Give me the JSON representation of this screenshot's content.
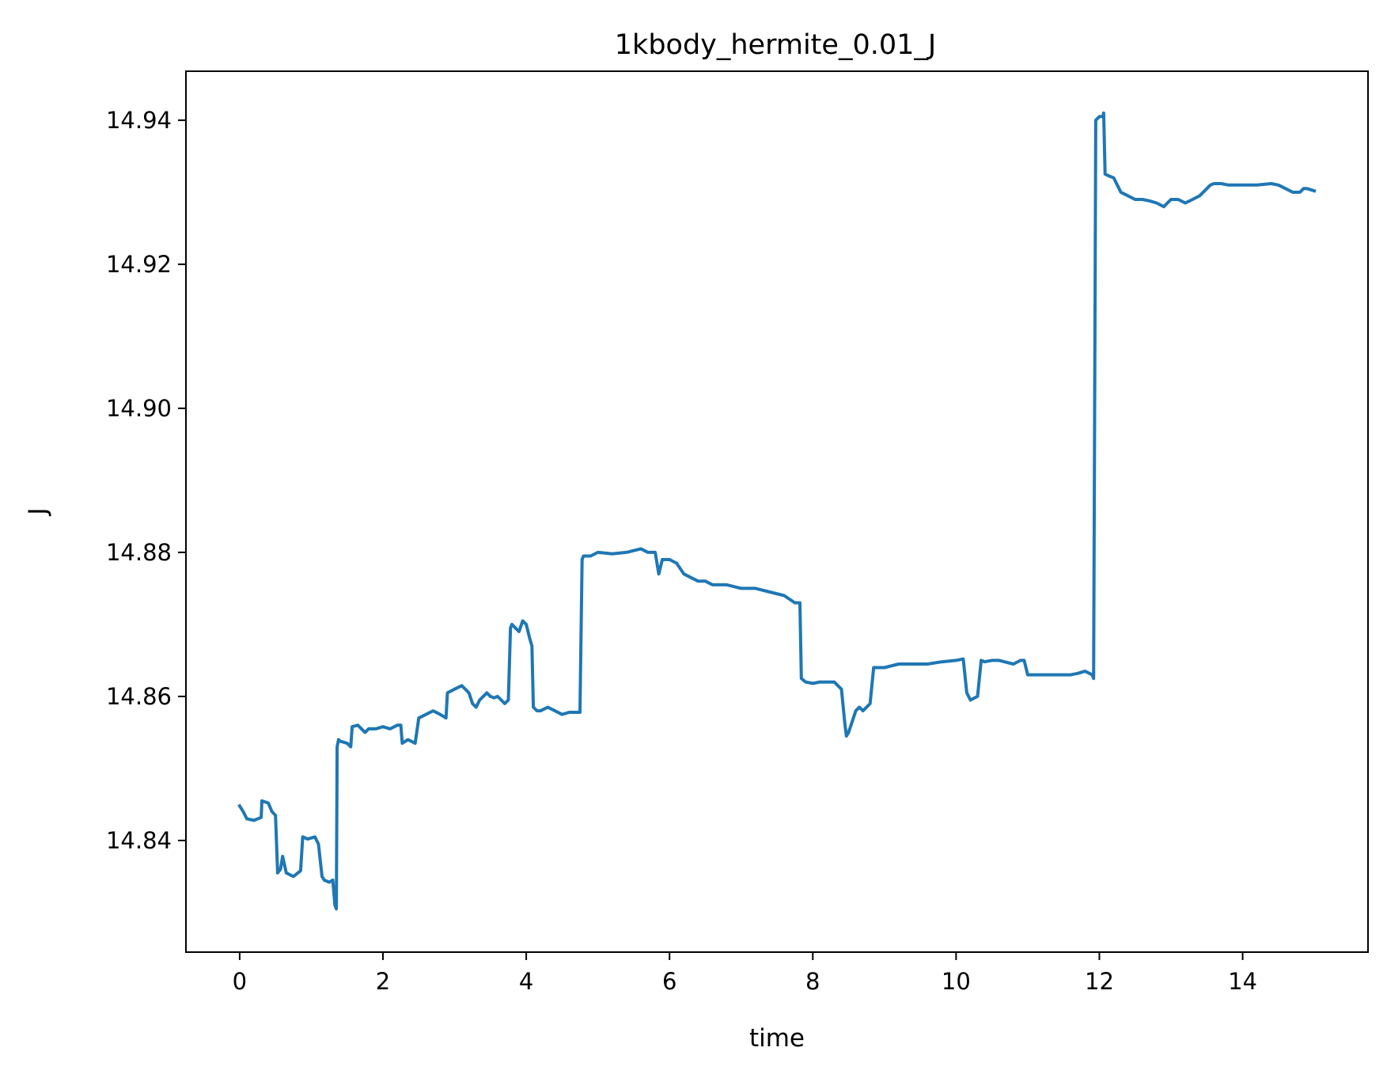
{
  "chart_data": {
    "type": "line",
    "title": "1kbody_hermite_0.01_J",
    "xlabel": "time",
    "ylabel": "J",
    "xlim": [
      -0.75,
      15.75
    ],
    "ylim": [
      14.8245,
      14.9468
    ],
    "xticks": [
      {
        "value": 0,
        "label": "0"
      },
      {
        "value": 2,
        "label": "2"
      },
      {
        "value": 4,
        "label": "4"
      },
      {
        "value": 6,
        "label": "6"
      },
      {
        "value": 8,
        "label": "8"
      },
      {
        "value": 10,
        "label": "10"
      },
      {
        "value": 12,
        "label": "12"
      },
      {
        "value": 14,
        "label": "14"
      }
    ],
    "yticks": [
      {
        "value": 14.84,
        "label": "14.84"
      },
      {
        "value": 14.86,
        "label": "14.86"
      },
      {
        "value": 14.88,
        "label": "14.88"
      },
      {
        "value": 14.9,
        "label": "14.90"
      },
      {
        "value": 14.92,
        "label": "14.92"
      },
      {
        "value": 14.94,
        "label": "14.94"
      }
    ],
    "grid": false,
    "legend": false,
    "series": [
      {
        "color": "#1f77b4",
        "x": [
          0.0,
          0.05,
          0.1,
          0.2,
          0.3,
          0.31,
          0.4,
          0.45,
          0.5,
          0.53,
          0.57,
          0.6,
          0.65,
          0.75,
          0.85,
          0.88,
          0.95,
          1.05,
          1.1,
          1.15,
          1.18,
          1.25,
          1.3,
          1.33,
          1.35,
          1.36,
          1.38,
          1.4,
          1.5,
          1.55,
          1.57,
          1.65,
          1.75,
          1.8,
          1.9,
          2.0,
          2.1,
          2.2,
          2.25,
          2.27,
          2.35,
          2.45,
          2.5,
          2.6,
          2.7,
          2.8,
          2.88,
          2.9,
          3.0,
          3.1,
          3.2,
          3.25,
          3.3,
          3.35,
          3.4,
          3.45,
          3.5,
          3.55,
          3.6,
          3.7,
          3.75,
          3.78,
          3.8,
          3.85,
          3.9,
          3.95,
          4.0,
          4.05,
          4.08,
          4.1,
          4.15,
          4.2,
          4.3,
          4.4,
          4.5,
          4.6,
          4.75,
          4.78,
          4.8,
          4.9,
          5.0,
          5.2,
          5.4,
          5.6,
          5.7,
          5.8,
          5.85,
          5.9,
          6.0,
          6.1,
          6.2,
          6.3,
          6.4,
          6.5,
          6.6,
          6.8,
          7.0,
          7.2,
          7.4,
          7.6,
          7.75,
          7.82,
          7.84,
          7.9,
          8.0,
          8.1,
          8.2,
          8.3,
          8.4,
          8.45,
          8.47,
          8.5,
          8.6,
          8.65,
          8.7,
          8.8,
          8.85,
          8.88,
          9.0,
          9.2,
          9.4,
          9.6,
          9.8,
          10.0,
          10.1,
          10.15,
          10.2,
          10.3,
          10.35,
          10.4,
          10.5,
          10.6,
          10.8,
          10.9,
          10.95,
          11.0,
          11.2,
          11.4,
          11.6,
          11.7,
          11.8,
          11.9,
          11.92,
          11.95,
          12.0,
          12.05,
          12.06,
          12.08,
          12.15,
          12.2,
          12.25,
          12.3,
          12.4,
          12.5,
          12.6,
          12.7,
          12.8,
          12.9,
          13.0,
          13.1,
          13.2,
          13.3,
          13.4,
          13.5,
          13.55,
          13.6,
          13.7,
          13.8,
          13.9,
          14.0,
          14.2,
          14.4,
          14.5,
          14.6,
          14.7,
          14.8,
          14.85,
          14.9,
          15.0
        ],
        "y": [
          14.8448,
          14.844,
          14.843,
          14.8428,
          14.8432,
          14.8455,
          14.8452,
          14.844,
          14.8435,
          14.8355,
          14.836,
          14.8378,
          14.8355,
          14.835,
          14.8358,
          14.8405,
          14.8402,
          14.8405,
          14.8395,
          14.835,
          14.8345,
          14.8342,
          14.8345,
          14.831,
          14.8305,
          14.853,
          14.854,
          14.8538,
          14.8535,
          14.853,
          14.8558,
          14.856,
          14.855,
          14.8555,
          14.8555,
          14.8558,
          14.8555,
          14.856,
          14.856,
          14.8535,
          14.854,
          14.8535,
          14.857,
          14.8575,
          14.858,
          14.8575,
          14.857,
          14.8605,
          14.861,
          14.8615,
          14.8605,
          14.859,
          14.8585,
          14.8595,
          14.86,
          14.8605,
          14.86,
          14.8598,
          14.86,
          14.859,
          14.8595,
          14.8695,
          14.87,
          14.8695,
          14.869,
          14.8705,
          14.87,
          14.868,
          14.867,
          14.8585,
          14.858,
          14.858,
          14.8585,
          14.858,
          14.8575,
          14.8578,
          14.8578,
          14.879,
          14.8795,
          14.8795,
          14.88,
          14.8798,
          14.88,
          14.8805,
          14.88,
          14.88,
          14.877,
          14.879,
          14.879,
          14.8785,
          14.877,
          14.8765,
          14.876,
          14.876,
          14.8755,
          14.8755,
          14.875,
          14.875,
          14.8745,
          14.874,
          14.873,
          14.873,
          14.8625,
          14.862,
          14.8618,
          14.862,
          14.862,
          14.862,
          14.861,
          14.856,
          14.8545,
          14.855,
          14.858,
          14.8585,
          14.858,
          14.859,
          14.864,
          14.864,
          14.864,
          14.8645,
          14.8645,
          14.8645,
          14.8648,
          14.865,
          14.8652,
          14.8605,
          14.8595,
          14.86,
          14.865,
          14.8648,
          14.865,
          14.865,
          14.8645,
          14.865,
          14.865,
          14.863,
          14.863,
          14.863,
          14.863,
          14.8632,
          14.8635,
          14.863,
          14.8625,
          14.94,
          14.9405,
          14.9405,
          14.941,
          14.9325,
          14.9322,
          14.932,
          14.931,
          14.93,
          14.9295,
          14.929,
          14.929,
          14.9288,
          14.9285,
          14.928,
          14.929,
          14.929,
          14.9285,
          14.929,
          14.9295,
          14.9305,
          14.931,
          14.9312,
          14.9312,
          14.931,
          14.931,
          14.931,
          14.931,
          14.9312,
          14.931,
          14.9305,
          14.93,
          14.93,
          14.9305,
          14.9305,
          14.9302
        ]
      }
    ]
  }
}
